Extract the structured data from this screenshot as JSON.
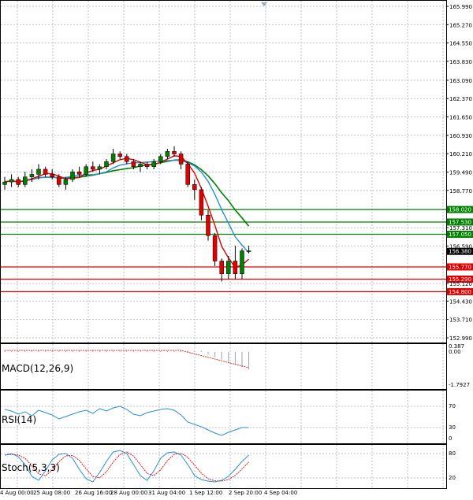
{
  "price_axis": {
    "ticks": [
      "165.990",
      "165.270",
      "164.550",
      "163.830",
      "163.090",
      "162.370",
      "161.650",
      "160.930",
      "160.210",
      "159.490",
      "158.770",
      "157.310",
      "156.590",
      "155.120",
      "154.430",
      "153.710",
      "152.990"
    ]
  },
  "levels": [
    {
      "price": 158.02,
      "label": "158.020",
      "color": "#008000"
    },
    {
      "price": 157.53,
      "label": "157.530",
      "color": "#008000"
    },
    {
      "price": 157.05,
      "label": "157.050",
      "color": "#008000"
    },
    {
      "price": 155.77,
      "label": "155.770",
      "color": "#e00000"
    },
    {
      "price": 155.29,
      "label": "155.290",
      "color": "#e00000"
    },
    {
      "price": 154.8,
      "label": "154.800",
      "color": "#e00000"
    }
  ],
  "current_price": {
    "price": 156.38,
    "label": "156.380"
  },
  "time_axis": [
    "4 Aug 00:00",
    "25 Aug 08:00",
    "26 Aug 16:00",
    "28 Aug 00:00",
    "31 Aug 04:00",
    "1 Sep 12:00",
    "2 Sep 20:00",
    "4 Sep 04:00"
  ],
  "indicators": {
    "macd": {
      "label": "MACD(12,26,9)",
      "ticks": [
        "0.387",
        "0.00",
        "-1.7927"
      ]
    },
    "rsi": {
      "label": "RSI(14)",
      "ticks": [
        "70",
        "30",
        "0"
      ]
    },
    "stoch": {
      "label": "Stoch(5,3,3)",
      "ticks": [
        "80",
        "20"
      ]
    }
  },
  "colors": {
    "support": "#008000",
    "resistance": "#e00000",
    "bull_candle": "#008000",
    "bear_candle": "#e00000",
    "ma_fast": "#e00000",
    "ma_slow": "#008000",
    "ma_mid": "#2a8fd4",
    "rsi_line": "#2a8fd4",
    "stoch_main": "#2a8fd4",
    "stoch_signal": "#e00000",
    "price_tag": "#000000"
  },
  "chart_data": {
    "type": "candlestick",
    "candles": [
      [
        159.0,
        159.3,
        158.8,
        159.1
      ],
      [
        159.1,
        159.4,
        158.9,
        159.2
      ],
      [
        159.2,
        159.3,
        158.9,
        159.0
      ],
      [
        159.0,
        159.5,
        158.9,
        159.3
      ],
      [
        159.3,
        159.6,
        159.1,
        159.4
      ],
      [
        159.4,
        159.8,
        159.2,
        159.6
      ],
      [
        159.6,
        159.7,
        159.3,
        159.4
      ],
      [
        159.4,
        159.6,
        159.2,
        159.3
      ],
      [
        159.3,
        159.4,
        158.9,
        159.0
      ],
      [
        159.0,
        159.3,
        158.8,
        159.2
      ],
      [
        159.2,
        159.6,
        159.1,
        159.5
      ],
      [
        159.5,
        159.7,
        159.3,
        159.4
      ],
      [
        159.4,
        159.8,
        159.3,
        159.7
      ],
      [
        159.7,
        159.9,
        159.5,
        159.6
      ],
      [
        159.6,
        159.8,
        159.4,
        159.7
      ],
      [
        159.7,
        160.0,
        159.6,
        159.9
      ],
      [
        159.9,
        160.4,
        159.8,
        160.2
      ],
      [
        160.2,
        160.3,
        160.0,
        160.1
      ],
      [
        160.1,
        160.2,
        159.8,
        159.9
      ],
      [
        159.9,
        160.0,
        159.6,
        159.7
      ],
      [
        159.7,
        159.9,
        159.5,
        159.8
      ],
      [
        159.8,
        159.9,
        159.6,
        159.7
      ],
      [
        159.7,
        160.0,
        159.6,
        159.9
      ],
      [
        159.9,
        160.2,
        159.8,
        160.1
      ],
      [
        160.1,
        160.4,
        160.0,
        160.3
      ],
      [
        160.3,
        160.5,
        160.1,
        160.2
      ],
      [
        160.2,
        160.3,
        159.6,
        159.8
      ],
      [
        159.8,
        159.9,
        158.9,
        159.0
      ],
      [
        159.0,
        159.2,
        158.4,
        158.8
      ],
      [
        158.8,
        158.9,
        157.6,
        157.8
      ],
      [
        157.8,
        158.0,
        156.8,
        157.0
      ],
      [
        157.0,
        157.1,
        155.8,
        156.0
      ],
      [
        156.0,
        156.1,
        155.2,
        155.5
      ],
      [
        155.5,
        156.2,
        155.3,
        156.0
      ],
      [
        156.0,
        156.6,
        155.3,
        155.5
      ],
      [
        155.5,
        156.5,
        155.3,
        156.4
      ],
      [
        156.4,
        156.6,
        156.3,
        156.4
      ]
    ],
    "ylim": [
      152.99,
      165.99
    ],
    "x_labels": [
      "4 Aug 00:00",
      "25 Aug 08:00",
      "26 Aug 16:00",
      "28 Aug 00:00",
      "31 Aug 04:00",
      "1 Sep 12:00",
      "2 Sep 20:00",
      "4 Sep 04:00"
    ]
  }
}
